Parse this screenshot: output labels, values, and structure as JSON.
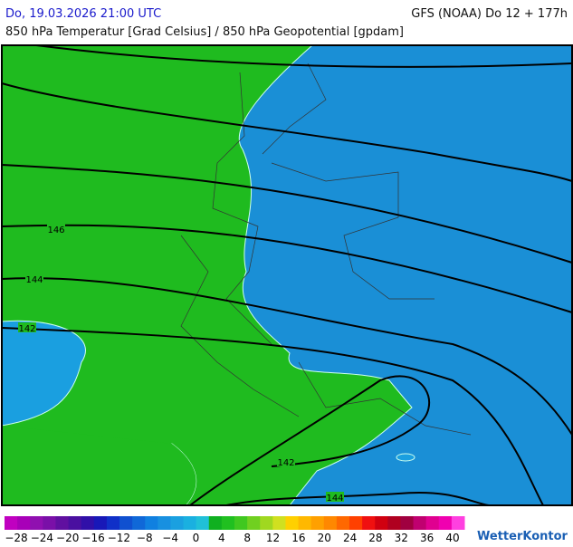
{
  "header": {
    "datetime": "Do, 19.03.2026 21:00 UTC",
    "model": "GFS (NOAA) Do 12 + 177h",
    "subtitle": "850 hPa Temperatur [Grad Celsius] / 850 hPa Geopotential [gpdam]"
  },
  "map": {
    "contour_labels": [
      146,
      144,
      142,
      142,
      144
    ]
  },
  "legend": {
    "labels": [
      "−28",
      "−24",
      "−20",
      "−16",
      "−12",
      "−8",
      "−4",
      "0",
      "4",
      "8",
      "12",
      "16",
      "20",
      "24",
      "28",
      "32",
      "36",
      "40"
    ]
  },
  "brand": "WetterKontor"
}
